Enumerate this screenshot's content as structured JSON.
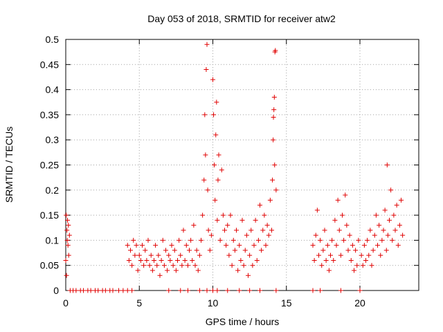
{
  "chart_data": {
    "type": "scatter",
    "title": "Day 053 of 2018, SRMTID for receiver atw2",
    "xlabel": "GPS time / hours",
    "ylabel": "SRMTID / TECUs",
    "xlim": [
      0,
      24
    ],
    "ylim": [
      0,
      0.5
    ],
    "x_ticks": [
      0,
      5,
      10,
      15,
      20
    ],
    "x_tick_labels": [
      "0",
      "5",
      "10",
      "15",
      "20"
    ],
    "y_ticks": [
      0,
      0.05,
      0.1,
      0.15,
      0.2,
      0.25,
      0.3,
      0.35,
      0.4,
      0.45,
      0.5
    ],
    "y_tick_labels": [
      "0",
      "0.05",
      "0.1",
      "0.15",
      "0.2",
      "0.25",
      "0.3",
      "0.35",
      "0.4",
      "0.45",
      "0.5"
    ],
    "grid": true,
    "marker": "+",
    "marker_color": "#e00000",
    "series": [
      {
        "name": "SRMTID",
        "points": [
          [
            0.0,
            0.06
          ],
          [
            0.03,
            0.15
          ],
          [
            0.05,
            0.03
          ],
          [
            0.08,
            0.12
          ],
          [
            0.1,
            0.1
          ],
          [
            0.12,
            0.14
          ],
          [
            0.15,
            0.09
          ],
          [
            0.18,
            0.13
          ],
          [
            0.2,
            0.07
          ],
          [
            0.25,
            0.11
          ],
          [
            0.3,
            0.0
          ],
          [
            0.5,
            0.0
          ],
          [
            0.7,
            0.0
          ],
          [
            1.0,
            0.0
          ],
          [
            1.2,
            0.0
          ],
          [
            1.5,
            0.0
          ],
          [
            1.7,
            0.0
          ],
          [
            2.0,
            0.0
          ],
          [
            2.2,
            0.0
          ],
          [
            2.5,
            0.0
          ],
          [
            2.7,
            0.0
          ],
          [
            3.0,
            0.0
          ],
          [
            3.2,
            0.0
          ],
          [
            3.6,
            0.0
          ],
          [
            3.9,
            0.0
          ],
          [
            4.2,
            0.0
          ],
          [
            4.5,
            0.0
          ],
          [
            4.2,
            0.09
          ],
          [
            4.3,
            0.06
          ],
          [
            4.4,
            0.08
          ],
          [
            4.5,
            0.05
          ],
          [
            4.6,
            0.1
          ],
          [
            4.7,
            0.07
          ],
          [
            4.8,
            0.09
          ],
          [
            4.9,
            0.04
          ],
          [
            5.0,
            0.07
          ],
          [
            5.1,
            0.06
          ],
          [
            5.2,
            0.09
          ],
          [
            5.3,
            0.05
          ],
          [
            5.4,
            0.08
          ],
          [
            5.5,
            0.06
          ],
          [
            5.6,
            0.1
          ],
          [
            5.7,
            0.05
          ],
          [
            5.8,
            0.07
          ],
          [
            5.9,
            0.04
          ],
          [
            6.0,
            0.06
          ],
          [
            6.1,
            0.09
          ],
          [
            6.2,
            0.05
          ],
          [
            6.3,
            0.07
          ],
          [
            6.4,
            0.03
          ],
          [
            6.5,
            0.06
          ],
          [
            6.6,
            0.1
          ],
          [
            6.7,
            0.05
          ],
          [
            6.8,
            0.08
          ],
          [
            6.9,
            0.04
          ],
          [
            7.0,
            0.07
          ],
          [
            7.1,
            0.06
          ],
          [
            7.2,
            0.09
          ],
          [
            7.3,
            0.05
          ],
          [
            7.4,
            0.08
          ],
          [
            7.5,
            0.04
          ],
          [
            7.6,
            0.06
          ],
          [
            7.7,
            0.1
          ],
          [
            7.8,
            0.07
          ],
          [
            7.9,
            0.05
          ],
          [
            8.0,
            0.12
          ],
          [
            8.1,
            0.06
          ],
          [
            8.2,
            0.09
          ],
          [
            8.3,
            0.05
          ],
          [
            8.4,
            0.08
          ],
          [
            8.5,
            0.1
          ],
          [
            8.6,
            0.06
          ],
          [
            8.7,
            0.13
          ],
          [
            8.8,
            0.05
          ],
          [
            8.9,
            0.08
          ],
          [
            9.0,
            0.04
          ],
          [
            9.1,
            0.07
          ],
          [
            9.2,
            0.1
          ],
          [
            9.3,
            0.15
          ],
          [
            9.4,
            0.22
          ],
          [
            9.45,
            0.35
          ],
          [
            9.5,
            0.27
          ],
          [
            9.55,
            0.44
          ],
          [
            9.6,
            0.49
          ],
          [
            9.65,
            0.2
          ],
          [
            9.7,
            0.12
          ],
          [
            9.8,
            0.08
          ],
          [
            9.9,
            0.11
          ],
          [
            10.0,
            0.42
          ],
          [
            10.05,
            0.35
          ],
          [
            10.1,
            0.25
          ],
          [
            10.15,
            0.18
          ],
          [
            10.2,
            0.31
          ],
          [
            10.25,
            0.375
          ],
          [
            10.3,
            0.14
          ],
          [
            10.35,
            0.22
          ],
          [
            10.4,
            0.27
          ],
          [
            10.5,
            0.1
          ],
          [
            10.6,
            0.24
          ],
          [
            10.7,
            0.15
          ],
          [
            10.8,
            0.12
          ],
          [
            10.9,
            0.09
          ],
          [
            11.0,
            0.13
          ],
          [
            11.1,
            0.07
          ],
          [
            11.2,
            0.15
          ],
          [
            11.3,
            0.05
          ],
          [
            11.4,
            0.1
          ],
          [
            11.5,
            0.08
          ],
          [
            11.6,
            0.12
          ],
          [
            11.7,
            0.04
          ],
          [
            11.8,
            0.09
          ],
          [
            11.9,
            0.06
          ],
          [
            12.0,
            0.14
          ],
          [
            12.1,
            0.05
          ],
          [
            12.2,
            0.08
          ],
          [
            12.3,
            0.11
          ],
          [
            12.4,
            0.03
          ],
          [
            12.5,
            0.07
          ],
          [
            12.6,
            0.12
          ],
          [
            12.7,
            0.05
          ],
          [
            12.8,
            0.09
          ],
          [
            12.9,
            0.14
          ],
          [
            13.0,
            0.06
          ],
          [
            13.1,
            0.1
          ],
          [
            13.2,
            0.17
          ],
          [
            13.3,
            0.08
          ],
          [
            13.4,
            0.12
          ],
          [
            13.5,
            0.15
          ],
          [
            13.6,
            0.09
          ],
          [
            13.7,
            0.13
          ],
          [
            13.8,
            0.11
          ],
          [
            13.9,
            0.18
          ],
          [
            14.0,
            0.12
          ],
          [
            14.05,
            0.22
          ],
          [
            14.1,
            0.3
          ],
          [
            14.12,
            0.345
          ],
          [
            14.15,
            0.36
          ],
          [
            14.18,
            0.385
          ],
          [
            14.2,
            0.25
          ],
          [
            14.22,
            0.475
          ],
          [
            14.25,
            0.478
          ],
          [
            14.3,
            0.2
          ],
          [
            7.0,
            0.0
          ],
          [
            7.8,
            0.0
          ],
          [
            8.3,
            0.0
          ],
          [
            9.1,
            0.0
          ],
          [
            9.6,
            0.0
          ],
          [
            10.0,
            0.0
          ],
          [
            10.3,
            0.0
          ],
          [
            11.0,
            0.0
          ],
          [
            11.8,
            0.0
          ],
          [
            12.5,
            0.0
          ],
          [
            13.2,
            0.0
          ],
          [
            14.3,
            0.0
          ],
          [
            16.8,
            0.0
          ],
          [
            17.3,
            0.0
          ],
          [
            18.7,
            0.0
          ],
          [
            20.0,
            0.0
          ],
          [
            16.8,
            0.09
          ],
          [
            16.9,
            0.06
          ],
          [
            17.0,
            0.11
          ],
          [
            17.1,
            0.16
          ],
          [
            17.2,
            0.07
          ],
          [
            17.3,
            0.1
          ],
          [
            17.4,
            0.05
          ],
          [
            17.5,
            0.08
          ],
          [
            17.6,
            0.12
          ],
          [
            17.7,
            0.06
          ],
          [
            17.8,
            0.09
          ],
          [
            17.9,
            0.04
          ],
          [
            18.0,
            0.07
          ],
          [
            18.1,
            0.1
          ],
          [
            18.2,
            0.06
          ],
          [
            18.3,
            0.14
          ],
          [
            18.4,
            0.09
          ],
          [
            18.5,
            0.18
          ],
          [
            18.6,
            0.12
          ],
          [
            18.7,
            0.07
          ],
          [
            18.8,
            0.15
          ],
          [
            18.9,
            0.1
          ],
          [
            19.0,
            0.19
          ],
          [
            19.1,
            0.13
          ],
          [
            19.2,
            0.08
          ],
          [
            19.3,
            0.11
          ],
          [
            19.4,
            0.06
          ],
          [
            19.5,
            0.09
          ],
          [
            19.6,
            0.04
          ],
          [
            19.7,
            0.08
          ],
          [
            19.8,
            0.05
          ],
          [
            19.9,
            0.1
          ],
          [
            20.1,
            0.07
          ],
          [
            20.2,
            0.05
          ],
          [
            20.3,
            0.09
          ],
          [
            20.4,
            0.06
          ],
          [
            20.5,
            0.1
          ],
          [
            20.6,
            0.07
          ],
          [
            20.7,
            0.12
          ],
          [
            20.8,
            0.05
          ],
          [
            20.9,
            0.08
          ],
          [
            21.0,
            0.11
          ],
          [
            21.1,
            0.15
          ],
          [
            21.2,
            0.09
          ],
          [
            21.3,
            0.13
          ],
          [
            21.4,
            0.07
          ],
          [
            21.5,
            0.1
          ],
          [
            21.6,
            0.12
          ],
          [
            21.7,
            0.16
          ],
          [
            21.8,
            0.08
          ],
          [
            21.85,
            0.25
          ],
          [
            21.9,
            0.11
          ],
          [
            22.0,
            0.14
          ],
          [
            22.1,
            0.2
          ],
          [
            22.2,
            0.1
          ],
          [
            22.3,
            0.15
          ],
          [
            22.4,
            0.12
          ],
          [
            22.5,
            0.17
          ],
          [
            22.6,
            0.09
          ],
          [
            22.7,
            0.13
          ],
          [
            22.8,
            0.18
          ],
          [
            22.9,
            0.11
          ]
        ]
      }
    ]
  }
}
